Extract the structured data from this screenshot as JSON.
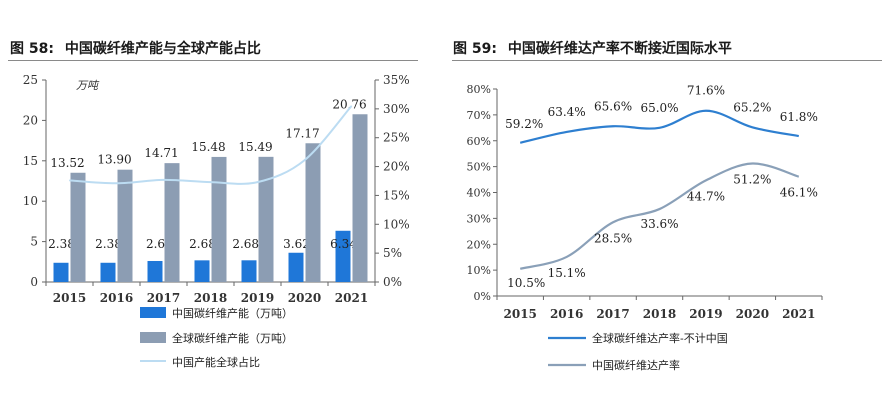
{
  "left_panel": {
    "fig_label": "图 58:",
    "title": "中国碳纤维产能与全球产能占比"
  },
  "right_panel": {
    "fig_label": "图 59:",
    "title": "中国碳纤维达产率不断接近国际水平"
  },
  "chart_data": [
    {
      "type": "bar",
      "unit_label": "万吨",
      "categories": [
        "2015",
        "2016",
        "2017",
        "2018",
        "2019",
        "2020",
        "2021"
      ],
      "ylim": [
        0,
        25
      ],
      "y2lim": [
        0,
        35
      ],
      "y_ticks": [
        "0",
        "5",
        "10",
        "15",
        "20",
        "25"
      ],
      "y2_ticks": [
        "0%",
        "5%",
        "10%",
        "15%",
        "20%",
        "25%",
        "30%",
        "35%"
      ],
      "series": [
        {
          "name": "中国碳纤维产能（万吨）",
          "kind": "bar",
          "color": "#1f77d8",
          "values": [
            2.38,
            2.38,
            2.6,
            2.68,
            2.685,
            3.62,
            6.34
          ],
          "labels": [
            "2.38",
            "2.38",
            "2.6",
            "2.68",
            "2.685",
            "3.62",
            "6.34"
          ]
        },
        {
          "name": "全球碳纤维产能（万吨）",
          "kind": "bar",
          "color": "#8c9db3",
          "values": [
            13.52,
            13.9,
            14.71,
            15.48,
            15.49,
            17.17,
            20.76
          ],
          "labels": [
            "13.52",
            "13.90",
            "14.71",
            "15.48",
            "15.49",
            "17.17",
            "20.76"
          ]
        },
        {
          "name": "中国产能全球占比",
          "kind": "line",
          "axis": "right",
          "color": "#bcdcf2",
          "values": [
            17.6,
            17.1,
            17.7,
            17.3,
            17.3,
            21.1,
            30.5
          ]
        }
      ],
      "legend_placement": "bottom"
    },
    {
      "type": "line",
      "categories": [
        "2015",
        "2016",
        "2017",
        "2018",
        "2019",
        "2020",
        "2021"
      ],
      "ylim": [
        0,
        80
      ],
      "y_ticks": [
        "0%",
        "10%",
        "20%",
        "30%",
        "40%",
        "50%",
        "60%",
        "70%",
        "80%"
      ],
      "series": [
        {
          "name": "全球碳纤维达产率-不计中国",
          "color": "#2e7fd0",
          "values": [
            59.2,
            63.4,
            65.6,
            65.0,
            71.6,
            65.2,
            61.8
          ],
          "labels": [
            "59.2%",
            "63.4%",
            "65.6%",
            "65.0%",
            "71.6%",
            "65.2%",
            "61.8%"
          ]
        },
        {
          "name": "中国碳纤维达产率",
          "color": "#8aa0b8",
          "values": [
            10.5,
            15.1,
            28.5,
            33.6,
            44.7,
            51.2,
            46.1
          ],
          "labels": [
            "10.5%",
            "15.1%",
            "28.5%",
            "33.6%",
            "44.7%",
            "51.2%",
            "46.1%"
          ]
        }
      ],
      "legend_placement": "bottom"
    }
  ]
}
